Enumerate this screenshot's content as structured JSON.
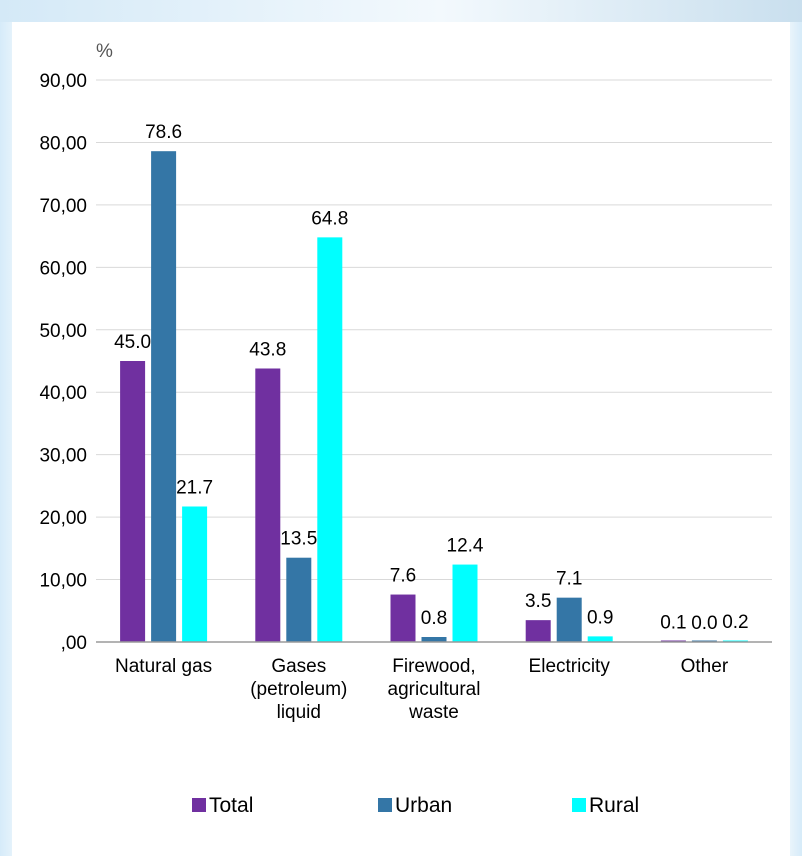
{
  "chart_data": {
    "type": "bar",
    "title": "",
    "ylabel": "%",
    "xlabel": "",
    "ylim": [
      0,
      90
    ],
    "yticks": [
      ",00",
      "10,00",
      "20,00",
      "30,00",
      "40,00",
      "50,00",
      "60,00",
      "70,00",
      "80,00",
      "90,00"
    ],
    "grid": true,
    "legend_position": "bottom",
    "categories": [
      [
        "Natural gas"
      ],
      [
        "Gases",
        "(petroleum)",
        "liquid"
      ],
      [
        "Firewood,",
        "agricultural",
        "waste"
      ],
      [
        "Electricity"
      ],
      [
        "Other"
      ]
    ],
    "series": [
      {
        "name": "Total",
        "color": "#7030a0",
        "values": [
          45.0,
          43.8,
          7.6,
          3.5,
          0.1
        ],
        "labels": [
          "45.0",
          "43.8",
          "7.6",
          "3.5",
          "0.1"
        ]
      },
      {
        "name": "Urban",
        "color": "#3476a6",
        "values": [
          78.6,
          13.5,
          0.8,
          7.1,
          0.0
        ],
        "labels": [
          "78.6",
          "13.5",
          "0.8",
          "7.1",
          "0.0"
        ]
      },
      {
        "name": "Rural",
        "color": "#00ffff",
        "values": [
          21.7,
          64.8,
          12.4,
          0.9,
          0.2
        ],
        "labels": [
          "21.7",
          "64.8",
          "12.4",
          "0.9",
          "0.2"
        ]
      }
    ]
  }
}
